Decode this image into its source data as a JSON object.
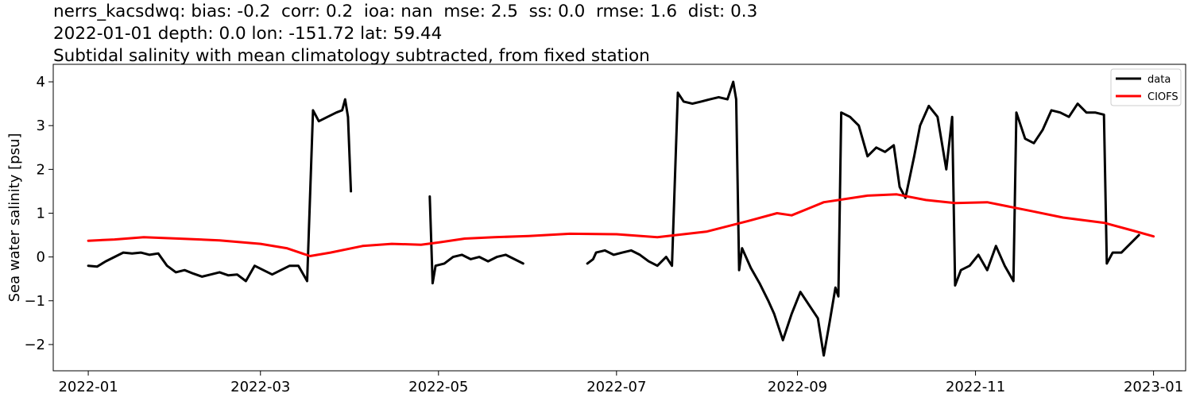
{
  "title": {
    "line1": "nerrs_kacsdwq: bias: -0.2  corr: 0.2  ioa: nan  mse: 2.5  ss: 0.0  rmse: 1.6  dist: 0.3",
    "line2": "2022-01-01 depth: 0.0 lon: -151.72 lat: 59.44",
    "line3": "Subtidal salinity with mean climatology subtracted, from fixed station"
  },
  "chart_data": {
    "type": "line",
    "xlabel": "",
    "ylabel": "Sea water salinity [psu]",
    "xlim": [
      "2021-12-20",
      "2023-01-12"
    ],
    "ylim": [
      -2.6,
      4.4
    ],
    "xticks": [
      "2022-01-01",
      "2022-03-01",
      "2022-05-01",
      "2022-07-01",
      "2022-09-01",
      "2022-11-01",
      "2023-01-01"
    ],
    "xtick_labels": [
      "2022-01",
      "2022-03",
      "2022-05",
      "2022-07",
      "2022-09",
      "2022-11",
      "2023-01"
    ],
    "yticks": [
      -2,
      -1,
      0,
      1,
      2,
      3,
      4
    ],
    "ytick_labels": [
      "−2",
      "−1",
      "0",
      "1",
      "2",
      "3",
      "4"
    ],
    "legend_position": "top-right",
    "grid": false,
    "series": [
      {
        "name": "data",
        "color": "#000000",
        "segments": [
          [
            [
              "2022-01-01",
              -0.2
            ],
            [
              "2022-01-04",
              -0.22
            ],
            [
              "2022-01-07",
              -0.1
            ],
            [
              "2022-01-10",
              0.0
            ],
            [
              "2022-01-13",
              0.1
            ],
            [
              "2022-01-16",
              0.08
            ],
            [
              "2022-01-19",
              0.1
            ],
            [
              "2022-01-22",
              0.05
            ],
            [
              "2022-01-25",
              0.08
            ],
            [
              "2022-01-28",
              -0.2
            ],
            [
              "2022-01-31",
              -0.35
            ],
            [
              "2022-02-03",
              -0.3
            ],
            [
              "2022-02-06",
              -0.38
            ],
            [
              "2022-02-09",
              -0.45
            ],
            [
              "2022-02-12",
              -0.4
            ],
            [
              "2022-02-15",
              -0.35
            ],
            [
              "2022-02-18",
              -0.42
            ],
            [
              "2022-02-21",
              -0.4
            ],
            [
              "2022-02-24",
              -0.55
            ],
            [
              "2022-02-27",
              -0.2
            ],
            [
              "2022-03-02",
              -0.3
            ],
            [
              "2022-03-05",
              -0.4
            ],
            [
              "2022-03-08",
              -0.3
            ],
            [
              "2022-03-11",
              -0.2
            ],
            [
              "2022-03-14",
              -0.2
            ],
            [
              "2022-03-17",
              -0.55
            ],
            [
              "2022-03-19",
              3.35
            ],
            [
              "2022-03-21",
              3.1
            ],
            [
              "2022-03-24",
              3.2
            ],
            [
              "2022-03-27",
              3.3
            ],
            [
              "2022-03-29",
              3.35
            ],
            [
              "2022-03-30",
              3.6
            ],
            [
              "2022-03-31",
              3.2
            ],
            [
              "2022-04-01",
              1.5
            ]
          ],
          [
            [
              "2022-04-28",
              1.38
            ],
            [
              "2022-04-29",
              -0.6
            ],
            [
              "2022-04-30",
              -0.2
            ],
            [
              "2022-05-03",
              -0.15
            ],
            [
              "2022-05-06",
              0.0
            ],
            [
              "2022-05-09",
              0.05
            ],
            [
              "2022-05-12",
              -0.05
            ],
            [
              "2022-05-15",
              0.0
            ],
            [
              "2022-05-18",
              -0.1
            ],
            [
              "2022-05-21",
              0.0
            ],
            [
              "2022-05-24",
              0.05
            ],
            [
              "2022-05-27",
              -0.05
            ],
            [
              "2022-05-30",
              -0.15
            ]
          ],
          [
            [
              "2022-06-21",
              -0.15
            ],
            [
              "2022-06-23",
              -0.05
            ],
            [
              "2022-06-24",
              0.1
            ],
            [
              "2022-06-27",
              0.15
            ],
            [
              "2022-06-30",
              0.05
            ],
            [
              "2022-07-03",
              0.1
            ],
            [
              "2022-07-06",
              0.15
            ],
            [
              "2022-07-09",
              0.05
            ],
            [
              "2022-07-12",
              -0.1
            ],
            [
              "2022-07-15",
              -0.2
            ],
            [
              "2022-07-18",
              0.0
            ],
            [
              "2022-07-20",
              -0.2
            ],
            [
              "2022-07-22",
              3.75
            ],
            [
              "2022-07-24",
              3.55
            ],
            [
              "2022-07-27",
              3.5
            ],
            [
              "2022-07-30",
              3.55
            ],
            [
              "2022-08-02",
              3.6
            ],
            [
              "2022-08-05",
              3.65
            ],
            [
              "2022-08-08",
              3.6
            ],
            [
              "2022-08-10",
              4.0
            ],
            [
              "2022-08-11",
              3.6
            ],
            [
              "2022-08-12",
              -0.3
            ],
            [
              "2022-08-13",
              0.2
            ],
            [
              "2022-08-16",
              -0.25
            ],
            [
              "2022-08-19",
              -0.6
            ],
            [
              "2022-08-22",
              -1.0
            ],
            [
              "2022-08-24",
              -1.3
            ],
            [
              "2022-08-27",
              -1.9
            ],
            [
              "2022-08-30",
              -1.3
            ],
            [
              "2022-09-02",
              -0.8
            ],
            [
              "2022-09-05",
              -1.1
            ],
            [
              "2022-09-08",
              -1.4
            ],
            [
              "2022-09-10",
              -2.25
            ],
            [
              "2022-09-12",
              -1.5
            ],
            [
              "2022-09-14",
              -0.7
            ],
            [
              "2022-09-15",
              -0.9
            ],
            [
              "2022-09-16",
              3.3
            ],
            [
              "2022-09-19",
              3.2
            ],
            [
              "2022-09-22",
              3.0
            ],
            [
              "2022-09-25",
              2.3
            ],
            [
              "2022-09-28",
              2.5
            ],
            [
              "2022-10-01",
              2.4
            ],
            [
              "2022-10-04",
              2.55
            ],
            [
              "2022-10-06",
              1.6
            ],
            [
              "2022-10-08",
              1.35
            ],
            [
              "2022-10-11",
              2.3
            ],
            [
              "2022-10-13",
              3.0
            ],
            [
              "2022-10-16",
              3.45
            ],
            [
              "2022-10-19",
              3.2
            ],
            [
              "2022-10-22",
              2.0
            ],
            [
              "2022-10-24",
              3.2
            ],
            [
              "2022-10-25",
              -0.65
            ],
            [
              "2022-10-27",
              -0.3
            ],
            [
              "2022-10-30",
              -0.2
            ],
            [
              "2022-11-02",
              0.05
            ],
            [
              "2022-11-05",
              -0.3
            ],
            [
              "2022-11-08",
              0.25
            ],
            [
              "2022-11-11",
              -0.2
            ],
            [
              "2022-11-14",
              -0.55
            ],
            [
              "2022-11-15",
              3.3
            ],
            [
              "2022-11-18",
              2.7
            ],
            [
              "2022-11-21",
              2.6
            ],
            [
              "2022-11-24",
              2.9
            ],
            [
              "2022-11-27",
              3.35
            ],
            [
              "2022-11-30",
              3.3
            ],
            [
              "2022-12-03",
              3.2
            ],
            [
              "2022-12-06",
              3.5
            ],
            [
              "2022-12-09",
              3.3
            ],
            [
              "2022-12-12",
              3.3
            ],
            [
              "2022-12-15",
              3.25
            ],
            [
              "2022-12-16",
              -0.15
            ],
            [
              "2022-12-18",
              0.1
            ],
            [
              "2022-12-21",
              0.1
            ],
            [
              "2022-12-24",
              0.3
            ],
            [
              "2022-12-27",
              0.5
            ]
          ]
        ]
      },
      {
        "name": "CIOFS",
        "color": "#ff0000",
        "segments": [
          [
            [
              "2022-01-01",
              0.37
            ],
            [
              "2022-01-10",
              0.4
            ],
            [
              "2022-01-20",
              0.45
            ],
            [
              "2022-02-01",
              0.42
            ],
            [
              "2022-02-15",
              0.38
            ],
            [
              "2022-03-01",
              0.3
            ],
            [
              "2022-03-10",
              0.2
            ],
            [
              "2022-03-18",
              0.02
            ],
            [
              "2022-03-25",
              0.1
            ],
            [
              "2022-04-05",
              0.25
            ],
            [
              "2022-04-15",
              0.3
            ],
            [
              "2022-04-25",
              0.28
            ],
            [
              "2022-05-01",
              0.33
            ],
            [
              "2022-05-10",
              0.42
            ],
            [
              "2022-05-20",
              0.45
            ],
            [
              "2022-06-01",
              0.48
            ],
            [
              "2022-06-15",
              0.53
            ],
            [
              "2022-07-01",
              0.52
            ],
            [
              "2022-07-15",
              0.45
            ],
            [
              "2022-08-01",
              0.58
            ],
            [
              "2022-08-15",
              0.82
            ],
            [
              "2022-08-25",
              1.0
            ],
            [
              "2022-08-30",
              0.95
            ],
            [
              "2022-09-10",
              1.25
            ],
            [
              "2022-09-25",
              1.4
            ],
            [
              "2022-10-05",
              1.43
            ],
            [
              "2022-10-15",
              1.3
            ],
            [
              "2022-10-25",
              1.23
            ],
            [
              "2022-11-05",
              1.25
            ],
            [
              "2022-11-20",
              1.05
            ],
            [
              "2022-12-01",
              0.9
            ],
            [
              "2022-12-15",
              0.78
            ],
            [
              "2022-12-25",
              0.6
            ],
            [
              "2023-01-01",
              0.47
            ]
          ]
        ]
      }
    ]
  }
}
